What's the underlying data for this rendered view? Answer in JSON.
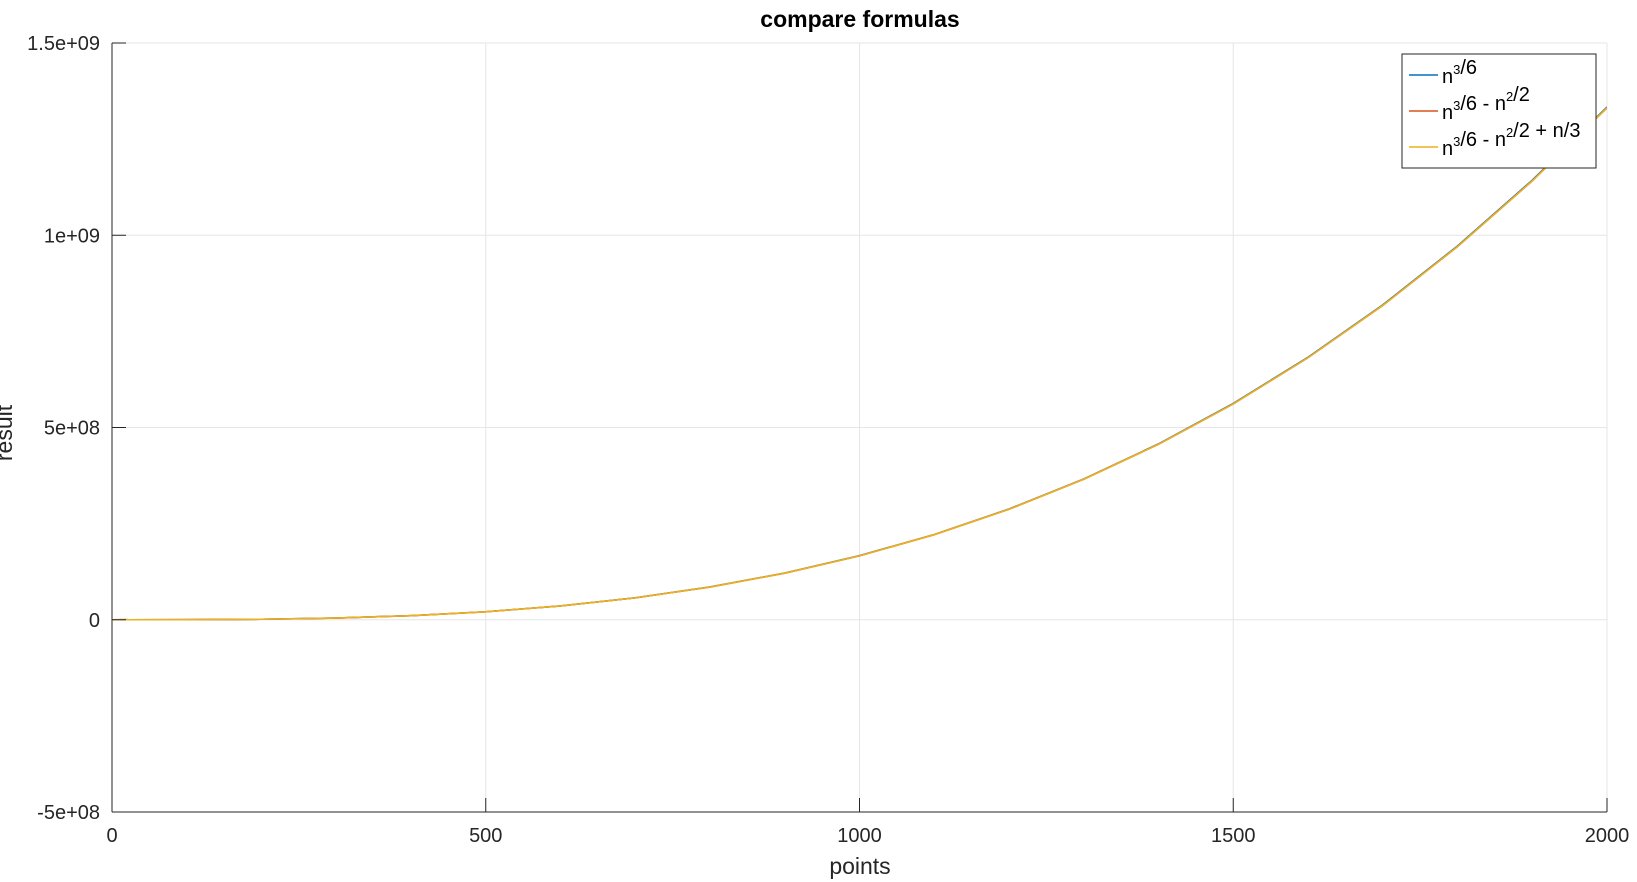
{
  "chart_data": {
    "type": "line",
    "title": "compare formulas",
    "xlabel": "points",
    "ylabel": "result",
    "xlim": [
      0,
      2000
    ],
    "ylim": [
      -500000000,
      1500000000
    ],
    "xticks": [
      0,
      500,
      1000,
      1500,
      2000
    ],
    "xtick_labels": [
      "0",
      "500",
      "1000",
      "1500",
      "2000"
    ],
    "yticks": [
      -500000000,
      0,
      500000000,
      1000000000,
      1500000000
    ],
    "ytick_labels": [
      "-5e+08",
      "0",
      "5e+08",
      "1e+09",
      "1.5e+09"
    ],
    "grid": true,
    "legend_position": "top-right",
    "x": [
      0,
      100,
      200,
      300,
      400,
      500,
      600,
      700,
      800,
      900,
      1000,
      1100,
      1200,
      1300,
      1400,
      1500,
      1600,
      1700,
      1800,
      1900,
      2000
    ],
    "series": [
      {
        "name": "n³/6",
        "legend_parts": [
          {
            "t": "n",
            "sup": false
          },
          {
            "t": "3",
            "sup": true
          },
          {
            "t": "/6",
            "sup": false
          }
        ],
        "color": "#0072BD",
        "values": [
          0,
          166667,
          1333333,
          4500000,
          10666667,
          20833333,
          36000000,
          57166667,
          85333333,
          121500000,
          166666667,
          221833333,
          288000000,
          366166667,
          457333333,
          562500000,
          682666667,
          818833333,
          972000000,
          1143166667,
          1333333333
        ]
      },
      {
        "name": "n³/6 - n²/2",
        "legend_parts": [
          {
            "t": "n",
            "sup": false
          },
          {
            "t": "3",
            "sup": true
          },
          {
            "t": "/6 - n",
            "sup": false
          },
          {
            "t": "2",
            "sup": true
          },
          {
            "t": "/2",
            "sup": false
          }
        ],
        "color": "#D95319",
        "values": [
          0,
          161667,
          1313333,
          4455000,
          10586667,
          20708333,
          35820000,
          56921667,
          85013333,
          121095000,
          166166667,
          221228333,
          287280000,
          365321667,
          456353333,
          561375000,
          681386667,
          817388333,
          970380000,
          1141361667,
          1331333333
        ]
      },
      {
        "name": "n³/6 - n²/2 + n/3",
        "legend_parts": [
          {
            "t": "n",
            "sup": false
          },
          {
            "t": "3",
            "sup": true
          },
          {
            "t": "/6 - n",
            "sup": false
          },
          {
            "t": "2",
            "sup": true
          },
          {
            "t": "/2 + n/3",
            "sup": false
          }
        ],
        "color": "#EDB120",
        "values": [
          0,
          161700,
          1313400,
          4455100,
          10586800,
          20708500,
          35820200,
          56921900,
          85013600,
          121095300,
          166167000,
          221228700,
          287280400,
          365322100,
          456353800,
          561375500,
          681387200,
          817388900,
          970380600,
          1141362300,
          1331334000
        ]
      }
    ]
  }
}
